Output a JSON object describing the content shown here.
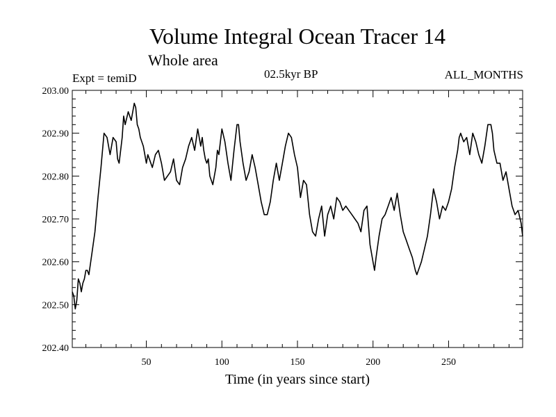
{
  "chart_data": {
    "type": "line",
    "title": "Volume Integral Ocean Tracer 14",
    "subtitle": "Whole area",
    "left_label": "Expt = temiD",
    "center_label": "02.5kyr BP",
    "right_label": "ALL_MONTHS",
    "xlabel": "Time (in years since start)",
    "ylabel": "",
    "xlim": [
      1,
      299
    ],
    "ylim": [
      202.4,
      203.0
    ],
    "xticks": [
      50,
      100,
      150,
      200,
      250
    ],
    "yticks": [
      "202.40",
      "202.50",
      "202.60",
      "202.70",
      "202.80",
      "202.90",
      "203.00"
    ],
    "grid": false,
    "series": [
      {
        "name": "Tracer 14",
        "color": "#000000",
        "x": [
          1,
          2,
          3,
          4,
          5,
          6,
          7,
          8,
          9,
          10,
          11,
          12,
          14,
          16,
          18,
          20,
          21,
          22,
          24,
          26,
          28,
          30,
          31,
          32,
          34,
          35,
          36,
          38,
          40,
          42,
          43,
          44,
          45,
          46,
          48,
          50,
          51,
          52,
          54,
          56,
          58,
          60,
          62,
          64,
          66,
          68,
          70,
          72,
          74,
          76,
          78,
          80,
          82,
          84,
          86,
          87,
          88,
          89,
          90,
          91,
          92,
          94,
          96,
          97,
          98,
          100,
          102,
          104,
          106,
          108,
          110,
          111,
          112,
          114,
          116,
          118,
          120,
          122,
          124,
          126,
          128,
          130,
          132,
          134,
          136,
          138,
          140,
          142,
          144,
          146,
          147,
          148,
          150,
          152,
          154,
          156,
          158,
          160,
          162,
          164,
          166,
          168,
          170,
          172,
          174,
          176,
          178,
          180,
          182,
          184,
          186,
          188,
          190,
          192,
          194,
          196,
          198,
          200,
          201,
          202,
          204,
          206,
          208,
          210,
          212,
          214,
          216,
          218,
          220,
          222,
          224,
          226,
          228,
          229,
          230,
          232,
          234,
          236,
          238,
          240,
          242,
          244,
          246,
          248,
          250,
          252,
          254,
          256,
          257,
          258,
          260,
          262,
          264,
          266,
          268,
          270,
          272,
          274,
          276,
          278,
          279,
          280,
          282,
          284,
          286,
          288,
          290,
          292,
          294,
          296,
          298,
          299
        ],
        "values": [
          202.53,
          202.52,
          202.49,
          202.51,
          202.56,
          202.55,
          202.53,
          202.55,
          202.56,
          202.58,
          202.58,
          202.57,
          202.62,
          202.67,
          202.75,
          202.82,
          202.86,
          202.9,
          202.89,
          202.85,
          202.89,
          202.88,
          202.84,
          202.83,
          202.89,
          202.94,
          202.92,
          202.95,
          202.93,
          202.97,
          202.96,
          202.92,
          202.91,
          202.89,
          202.87,
          202.83,
          202.85,
          202.84,
          202.82,
          202.85,
          202.86,
          202.83,
          202.79,
          202.8,
          202.81,
          202.84,
          202.79,
          202.78,
          202.82,
          202.84,
          202.87,
          202.89,
          202.86,
          202.91,
          202.87,
          202.89,
          202.86,
          202.84,
          202.83,
          202.84,
          202.8,
          202.78,
          202.82,
          202.86,
          202.85,
          202.91,
          202.88,
          202.83,
          202.79,
          202.86,
          202.92,
          202.92,
          202.88,
          202.83,
          202.79,
          202.81,
          202.85,
          202.82,
          202.78,
          202.74,
          202.71,
          202.71,
          202.74,
          202.79,
          202.83,
          202.79,
          202.83,
          202.87,
          202.9,
          202.89,
          202.87,
          202.85,
          202.82,
          202.75,
          202.79,
          202.78,
          202.71,
          202.67,
          202.66,
          202.7,
          202.73,
          202.66,
          202.71,
          202.73,
          202.7,
          202.75,
          202.74,
          202.72,
          202.73,
          202.72,
          202.71,
          202.7,
          202.69,
          202.67,
          202.72,
          202.73,
          202.64,
          202.6,
          202.58,
          202.61,
          202.66,
          202.7,
          202.71,
          202.73,
          202.75,
          202.72,
          202.76,
          202.71,
          202.67,
          202.65,
          202.63,
          202.61,
          202.58,
          202.57,
          202.58,
          202.6,
          202.63,
          202.66,
          202.71,
          202.77,
          202.74,
          202.7,
          202.73,
          202.72,
          202.74,
          202.77,
          202.82,
          202.86,
          202.89,
          202.9,
          202.88,
          202.89,
          202.85,
          202.9,
          202.88,
          202.85,
          202.83,
          202.87,
          202.92,
          202.92,
          202.9,
          202.86,
          202.83,
          202.83,
          202.79,
          202.81,
          202.77,
          202.73,
          202.71,
          202.72,
          202.69,
          202.66
        ]
      }
    ]
  }
}
